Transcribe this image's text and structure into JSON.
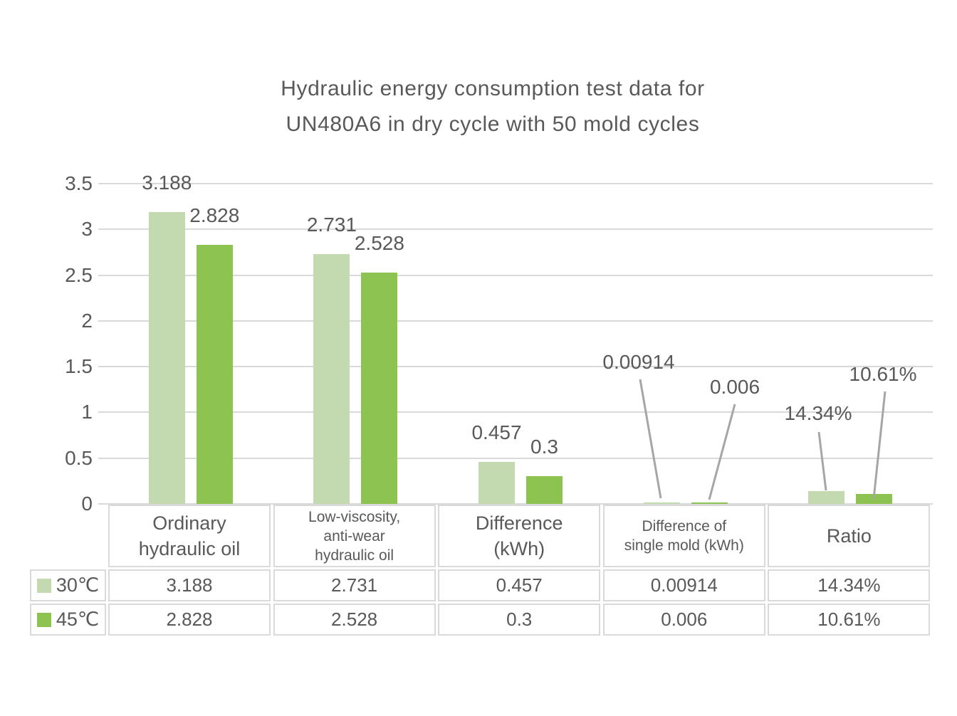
{
  "title": {
    "line1": "Hydraulic energy consumption test data for",
    "line2": "UN480A6 in dry cycle with 50 mold cycles"
  },
  "colors": {
    "text": "#595959",
    "gridline": "#d9d9d9",
    "table_border": "#d9d9d9",
    "leader_line": "#a6a6a6",
    "series_30c": "#c3dab0",
    "series_45c": "#8cc351"
  },
  "chart_data": {
    "type": "bar",
    "title": "Hydraulic energy consumption test data for UN480A6 in dry cycle with 50 mold cycles",
    "categories": [
      "Ordinary hydraulic oil",
      "Low-viscosity, anti-wear hydraulic oil",
      "Difference (kWh)",
      "Difference of single mold (kWh)",
      "Ratio"
    ],
    "series": [
      {
        "name": "30℃",
        "color": "#c3dab0",
        "values": [
          3.188,
          2.731,
          0.457,
          0.00914,
          0.1434
        ],
        "data_labels": [
          "3.188",
          "2.731",
          "0.457",
          "0.00914",
          "14.34%"
        ]
      },
      {
        "name": "45℃",
        "color": "#8cc351",
        "values": [
          2.828,
          2.528,
          0.3,
          0.006,
          0.1061
        ],
        "data_labels": [
          "2.828",
          "2.528",
          "0.3",
          "0.006",
          "10.61%"
        ]
      }
    ],
    "ylim": [
      0,
      3.5
    ],
    "yticks": [
      "0",
      "0.5",
      "1",
      "1.5",
      "2",
      "2.5",
      "3",
      "3.5"
    ],
    "grid": true,
    "legend_position": "table-left"
  },
  "table": {
    "headers": [
      "Ordinary\nhydraulic oil",
      "Low-viscosity,\nanti-wear\nhydraulic oil",
      "Difference\n(kWh)",
      "Difference of\nsingle mold (kWh)",
      "Ratio"
    ],
    "rows": [
      {
        "label": "30℃",
        "values": [
          "3.188",
          "2.731",
          "0.457",
          "0.00914",
          "14.34%"
        ]
      },
      {
        "label": "45℃",
        "values": [
          "2.828",
          "2.528",
          "0.3",
          "0.006",
          "10.61%"
        ]
      }
    ]
  }
}
